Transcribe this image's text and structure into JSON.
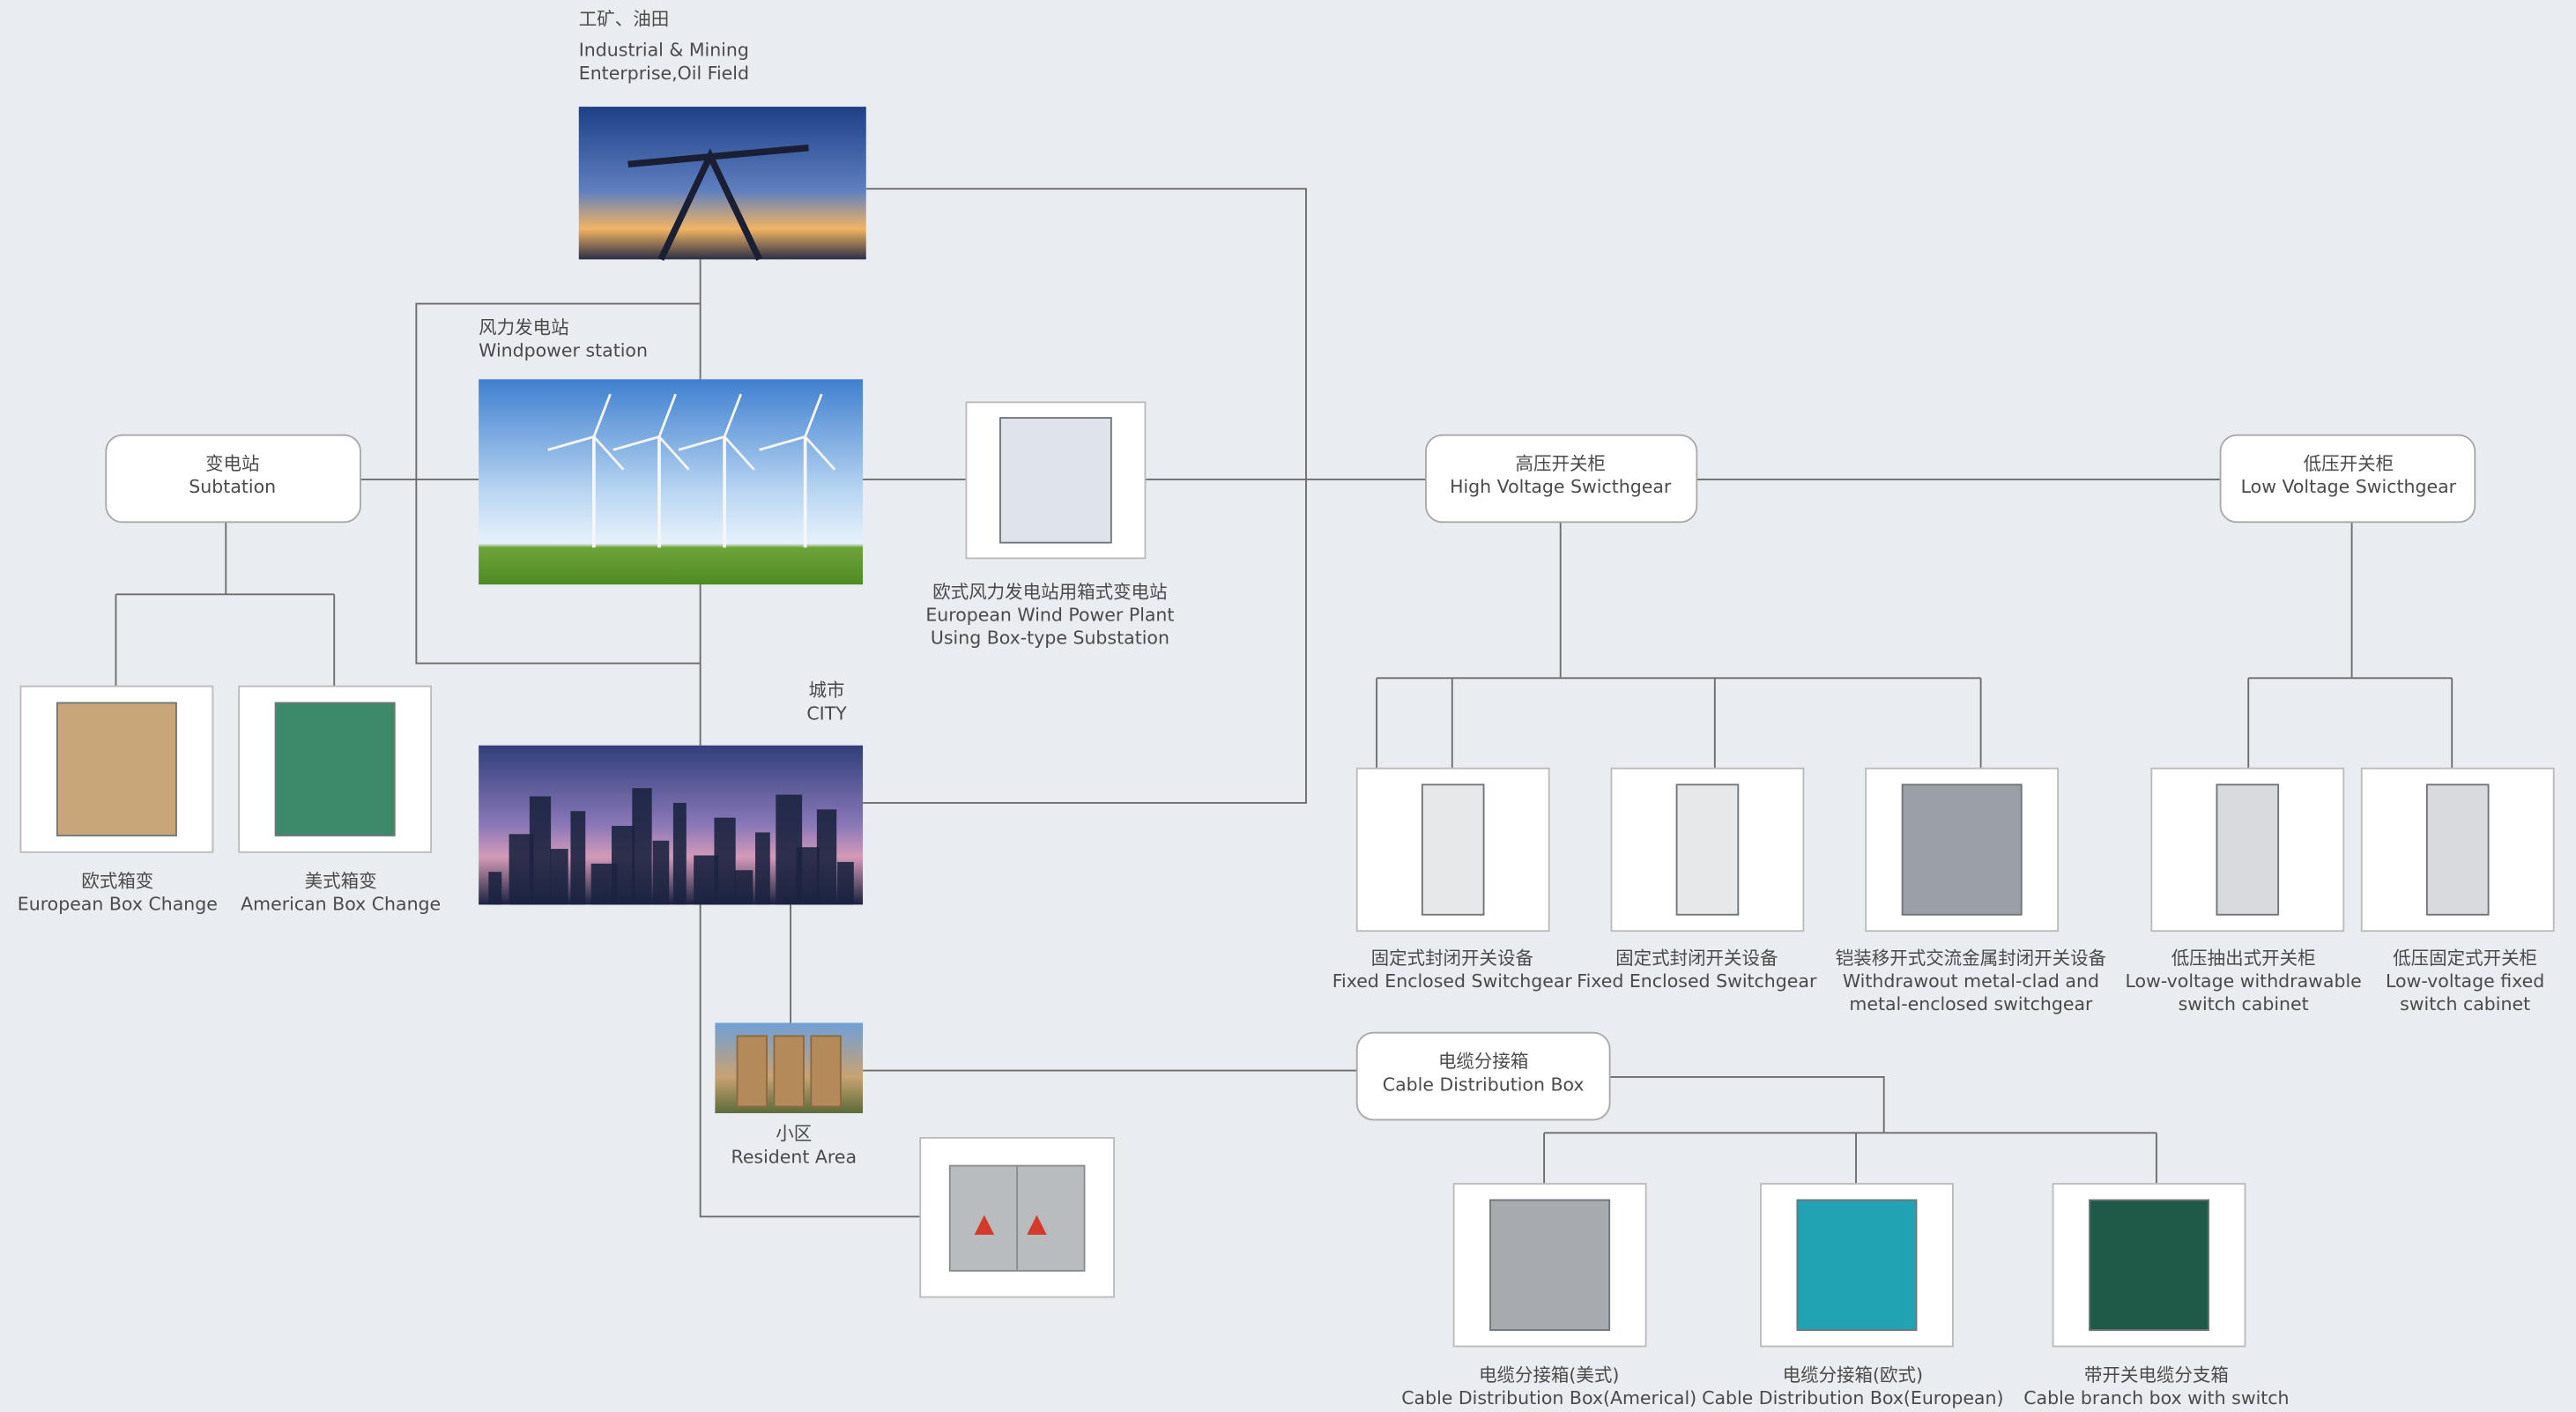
{
  "nodes": [
    {
      "lines": [
        "工矿、油田",
        "Industrial & Mining",
        "Enterprise,Oil Field"
      ]
    },
    {
      "lines": [
        "风力发电站",
        "Windpower station"
      ]
    },
    {
      "lines": [
        "变电站",
        "Subtation"
      ]
    },
    {
      "lines": [
        "欧式风力发电站用箱式变电站",
        "European Wind Power Plant",
        "Using Box-type Substation"
      ]
    },
    {
      "lines": [
        "城市",
        "CITY"
      ]
    },
    {
      "lines": [
        "欧式箱变",
        "European Box Change"
      ]
    },
    {
      "lines": [
        "美式箱变",
        "American Box Change"
      ]
    },
    {
      "lines": [
        "高压开关柜",
        "High Voltage Swicthgear"
      ]
    },
    {
      "lines": [
        "低压开关柜",
        "Low Voltage Swicthgear"
      ]
    },
    {
      "lines": [
        "固定式封闭开关设备",
        "Fixed Enclosed Switchgear"
      ]
    },
    {
      "lines": [
        "固定式封闭开关设备",
        "Fixed Enclosed Switchgear"
      ]
    },
    {
      "lines": [
        "铠装移开式交流金属封闭开关设备",
        "Withdrawout metal-clad and",
        "metal-enclosed switchgear"
      ]
    },
    {
      "lines": [
        "低压抽出式开关柜",
        "Low-voltage withdrawable",
        "switch cabinet"
      ]
    },
    {
      "lines": [
        "低压固定式开关柜",
        "Low-voltage fixed",
        "switch cabinet"
      ]
    },
    {
      "lines": [
        "小区",
        "Resident Area"
      ]
    },
    {
      "lines": [
        "电缆分接箱",
        "Cable Distribution Box"
      ]
    },
    {
      "lines": [
        "电缆分接箱(美式)",
        "Cable Distribution Box(Americal)"
      ]
    },
    {
      "lines": [
        "电缆分接箱(欧式)",
        "Cable Distribution Box(European)"
      ]
    },
    {
      "lines": [
        "带开关电缆分支箱",
        "Cable branch box with switch"
      ]
    }
  ]
}
